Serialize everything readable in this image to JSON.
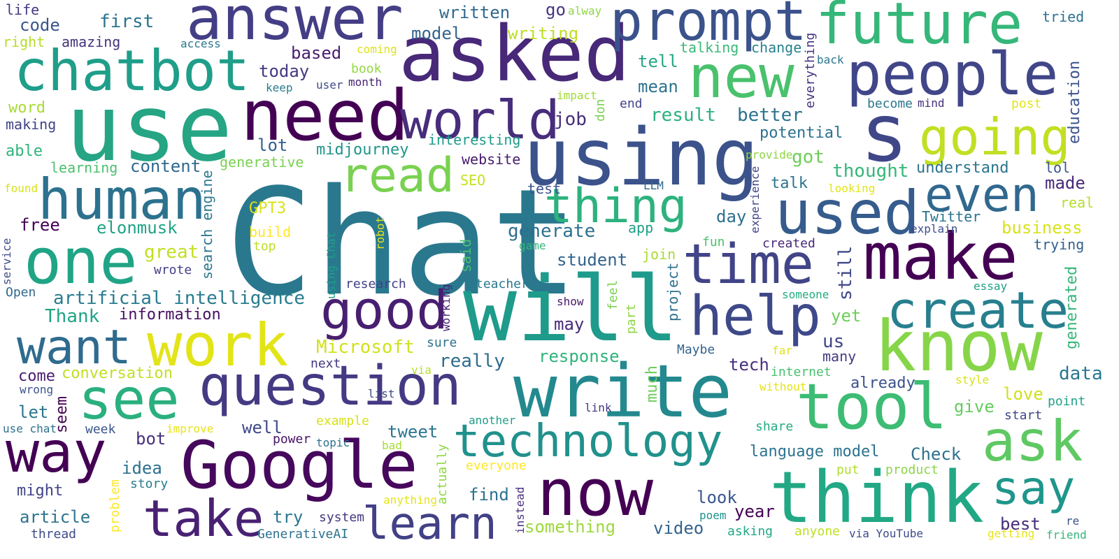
{
  "words": [
    {
      "text": "Chat",
      "color": "#2a788e"
    },
    {
      "text": "use",
      "color": "#25a584"
    },
    {
      "text": "answer",
      "color": "#433e85"
    },
    {
      "text": "asked",
      "color": "#482878"
    },
    {
      "text": "prompt",
      "color": "#3b528b"
    },
    {
      "text": "future",
      "color": "#35b779"
    },
    {
      "text": "chatbot",
      "color": "#1f9e89"
    },
    {
      "text": "need",
      "color": "#440154"
    },
    {
      "text": "using",
      "color": "#3b528b"
    },
    {
      "text": "new",
      "color": "#4ac16d"
    },
    {
      "text": "people",
      "color": "#404688"
    },
    {
      "text": "s",
      "color": "#3f4788"
    },
    {
      "text": "world",
      "color": "#472d7b"
    },
    {
      "text": "going",
      "color": "#c2df23"
    },
    {
      "text": "human",
      "color": "#2c728e"
    },
    {
      "text": "read",
      "color": "#7ad151"
    },
    {
      "text": "thing",
      "color": "#2db27d"
    },
    {
      "text": "even",
      "color": "#31688e"
    },
    {
      "text": "used",
      "color": "#365c8d"
    },
    {
      "text": "one",
      "color": "#20a486"
    },
    {
      "text": "make",
      "color": "#440154"
    },
    {
      "text": "time",
      "color": "#414487"
    },
    {
      "text": "work",
      "color": "#e2e418"
    },
    {
      "text": "will",
      "color": "#1e9b8a"
    },
    {
      "text": "good",
      "color": "#481f70"
    },
    {
      "text": "help",
      "color": "#3e4989"
    },
    {
      "text": "create",
      "color": "#277f8e"
    },
    {
      "text": "want",
      "color": "#2f6b8e"
    },
    {
      "text": "know",
      "color": "#86d549"
    },
    {
      "text": "see",
      "color": "#2ab07f"
    },
    {
      "text": "question",
      "color": "#443a83"
    },
    {
      "text": "write",
      "color": "#23898e"
    },
    {
      "text": "tool",
      "color": "#3dbc74"
    },
    {
      "text": "way",
      "color": "#440154"
    },
    {
      "text": "Google",
      "color": "#46085c"
    },
    {
      "text": "ask",
      "color": "#5ec962"
    },
    {
      "text": "technology",
      "color": "#21918c"
    },
    {
      "text": "now",
      "color": "#440154"
    },
    {
      "text": "say",
      "color": "#1f968b"
    },
    {
      "text": "think",
      "color": "#22a884"
    },
    {
      "text": "take",
      "color": "#482173"
    },
    {
      "text": "learn",
      "color": "#424086"
    },
    {
      "text": "life",
      "color": "#453781"
    },
    {
      "text": "code",
      "color": "#39568c"
    },
    {
      "text": "first",
      "color": "#2c738e"
    },
    {
      "text": "right",
      "color": "#b5de2b"
    },
    {
      "text": "amazing",
      "color": "#46337f"
    },
    {
      "text": "access",
      "color": "#2a788e"
    },
    {
      "text": "written",
      "color": "#31688e"
    },
    {
      "text": "go",
      "color": "#453581"
    },
    {
      "text": "alway",
      "color": "#8fd744"
    },
    {
      "text": "tried",
      "color": "#2d718e"
    },
    {
      "text": "model",
      "color": "#33638d"
    },
    {
      "text": "writing",
      "color": "#bddf26"
    },
    {
      "text": "based",
      "color": "#481d6f"
    },
    {
      "text": "coming",
      "color": "#dde318"
    },
    {
      "text": "talking",
      "color": "#38b977"
    },
    {
      "text": "change",
      "color": "#26818e"
    },
    {
      "text": "back",
      "color": "#2a768e"
    },
    {
      "text": "book",
      "color": "#95d840"
    },
    {
      "text": "month",
      "color": "#482677"
    },
    {
      "text": "user",
      "color": "#3e4a89"
    },
    {
      "text": "keep",
      "color": "#287c8e"
    },
    {
      "text": "today",
      "color": "#453882"
    },
    {
      "text": "impact",
      "color": "#a2da37"
    },
    {
      "text": "tell",
      "color": "#22a785"
    },
    {
      "text": "mean",
      "color": "#2c728e"
    },
    {
      "text": "end",
      "color": "#414487"
    },
    {
      "text": "everything",
      "color": "#46327e"
    },
    {
      "text": "become",
      "color": "#2a778e"
    },
    {
      "text": "mind",
      "color": "#472f7d"
    },
    {
      "text": "post",
      "color": "#e5e419"
    },
    {
      "text": "education",
      "color": "#3b528b"
    },
    {
      "text": "word",
      "color": "#a8db34"
    },
    {
      "text": "making",
      "color": "#404387"
    },
    {
      "text": "result",
      "color": "#2ab07f"
    },
    {
      "text": "better",
      "color": "#2c738e"
    },
    {
      "text": "don",
      "color": "#7ad151"
    },
    {
      "text": "job",
      "color": "#472d7b"
    },
    {
      "text": "interesting",
      "color": "#1e9b8a"
    },
    {
      "text": "potential",
      "color": "#2c728e"
    },
    {
      "text": "lot",
      "color": "#34618d"
    },
    {
      "text": "midjourney",
      "color": "#1f958b"
    },
    {
      "text": "able",
      "color": "#2eb37c"
    },
    {
      "text": "generative",
      "color": "#7ad151"
    },
    {
      "text": "content",
      "color": "#30698e"
    },
    {
      "text": "website",
      "color": "#481b6d"
    },
    {
      "text": "got",
      "color": "#6ece58"
    },
    {
      "text": "thought",
      "color": "#35b779"
    },
    {
      "text": "understand",
      "color": "#2b748e"
    },
    {
      "text": "lol",
      "color": "#39568c"
    },
    {
      "text": "provide",
      "color": "#8fd744"
    },
    {
      "text": "learning",
      "color": "#4ac16d"
    },
    {
      "text": "experience",
      "color": "#414487"
    },
    {
      "text": "looking",
      "color": "#e2e418"
    },
    {
      "text": "found",
      "color": "#d8e219"
    },
    {
      "text": "search engine",
      "color": "#2a788e"
    },
    {
      "text": "SEO",
      "color": "#c8e020"
    },
    {
      "text": "test",
      "color": "#3b528b"
    },
    {
      "text": "LLM",
      "color": "#31688e"
    },
    {
      "text": "talk",
      "color": "#2c738e"
    },
    {
      "text": "made",
      "color": "#482878"
    },
    {
      "text": "real",
      "color": "#b8de29"
    },
    {
      "text": "GPT3",
      "color": "#d8e219"
    },
    {
      "text": "build",
      "color": "#fde725"
    },
    {
      "text": "free",
      "color": "#440154"
    },
    {
      "text": "elonmusk",
      "color": "#20a386"
    },
    {
      "text": "generate",
      "color": "#2d708e"
    },
    {
      "text": "app",
      "color": "#1f9e89"
    },
    {
      "text": "day",
      "color": "#2d708e"
    },
    {
      "text": "Twitter",
      "color": "#2c728e"
    },
    {
      "text": "business",
      "color": "#d8e219"
    },
    {
      "text": "explain",
      "color": "#3d4d8a"
    },
    {
      "text": "top",
      "color": "#bddf26"
    },
    {
      "text": "robot",
      "color": "#e2e418"
    },
    {
      "text": "using Chat",
      "color": "#1fa188"
    },
    {
      "text": "great",
      "color": "#c2df23"
    },
    {
      "text": "game",
      "color": "#35b779"
    },
    {
      "text": "fun",
      "color": "#4ac16d"
    },
    {
      "text": "created",
      "color": "#482878"
    },
    {
      "text": "trying",
      "color": "#34608d"
    },
    {
      "text": "service",
      "color": "#3d4e8a"
    },
    {
      "text": "wrote",
      "color": "#424086"
    },
    {
      "text": "said",
      "color": "#48c16e"
    },
    {
      "text": "student",
      "color": "#33638d"
    },
    {
      "text": "join",
      "color": "#a8db34"
    },
    {
      "text": "still",
      "color": "#3f4788"
    },
    {
      "text": "Open",
      "color": "#31688e"
    },
    {
      "text": "research",
      "color": "#424086"
    },
    {
      "text": "teacher",
      "color": "#2a788e"
    },
    {
      "text": "project",
      "color": "#2d718e"
    },
    {
      "text": "essay",
      "color": "#1fa088"
    },
    {
      "text": "artificial intelligence",
      "color": "#287c8e"
    },
    {
      "text": "someone",
      "color": "#25ab82"
    },
    {
      "text": "show",
      "color": "#481668"
    },
    {
      "text": "feel",
      "color": "#7ad151"
    },
    {
      "text": "Thank",
      "color": "#20a486"
    },
    {
      "text": "information",
      "color": "#471063"
    },
    {
      "text": "working",
      "color": "#482173"
    },
    {
      "text": "part",
      "color": "#8fd744"
    },
    {
      "text": "yet",
      "color": "#6ece58"
    },
    {
      "text": "generated",
      "color": "#35b779"
    },
    {
      "text": "may",
      "color": "#472c7a"
    },
    {
      "text": "Microsoft",
      "color": "#d0e11c"
    },
    {
      "text": "sure",
      "color": "#2d718e"
    },
    {
      "text": "us",
      "color": "#404588"
    },
    {
      "text": "Maybe",
      "color": "#33638d"
    },
    {
      "text": "far",
      "color": "#dde318"
    },
    {
      "text": "really",
      "color": "#2f6c8e"
    },
    {
      "text": "response",
      "color": "#2eb37c"
    },
    {
      "text": "next",
      "color": "#453781"
    },
    {
      "text": "via",
      "color": "#b5de2b"
    },
    {
      "text": "tech",
      "color": "#46307e"
    },
    {
      "text": "many",
      "color": "#443a83"
    },
    {
      "text": "internet",
      "color": "#48c16e"
    },
    {
      "text": "without",
      "color": "#e2e418"
    },
    {
      "text": "come",
      "color": "#481c6e"
    },
    {
      "text": "conversation",
      "color": "#c2df23"
    },
    {
      "text": "much",
      "color": "#6ccd5a"
    },
    {
      "text": "already",
      "color": "#3b528b"
    },
    {
      "text": "data",
      "color": "#2a788e"
    },
    {
      "text": "style",
      "color": "#d8e219"
    },
    {
      "text": "wrong",
      "color": "#3b528b"
    },
    {
      "text": "list",
      "color": "#3f4889"
    },
    {
      "text": "let",
      "color": "#2a768e"
    },
    {
      "text": "seem",
      "color": "#440154"
    },
    {
      "text": "give",
      "color": "#65cb5e"
    },
    {
      "text": "love",
      "color": "#d0e11c"
    },
    {
      "text": "point",
      "color": "#20a386"
    },
    {
      "text": "link",
      "color": "#453781"
    },
    {
      "text": "well",
      "color": "#3e4989"
    },
    {
      "text": "tweet",
      "color": "#2a768e"
    },
    {
      "text": "use chat",
      "color": "#2d718e"
    },
    {
      "text": "week",
      "color": "#39568c"
    },
    {
      "text": "improve",
      "color": "#e7e419"
    },
    {
      "text": "example",
      "color": "#d8e219"
    },
    {
      "text": "another",
      "color": "#1f9e89"
    },
    {
      "text": "share",
      "color": "#25ab82"
    },
    {
      "text": "start",
      "color": "#3f4788"
    },
    {
      "text": "bot",
      "color": "#46307e"
    },
    {
      "text": "power",
      "color": "#471365"
    },
    {
      "text": "topic",
      "color": "#2c728e"
    },
    {
      "text": "language model",
      "color": "#2c738e"
    },
    {
      "text": "Check",
      "color": "#2d708e"
    },
    {
      "text": "idea",
      "color": "#2c718e"
    },
    {
      "text": "bad",
      "color": "#a8db34"
    },
    {
      "text": "everyone",
      "color": "#fde725"
    },
    {
      "text": "put",
      "color": "#b2dd2d"
    },
    {
      "text": "product",
      "color": "#8bd646"
    },
    {
      "text": "story",
      "color": "#287d8e"
    },
    {
      "text": "might",
      "color": "#414487"
    },
    {
      "text": "actually",
      "color": "#8fd744"
    },
    {
      "text": "find",
      "color": "#2d718e"
    },
    {
      "text": "look",
      "color": "#39568c"
    },
    {
      "text": "year",
      "color": "#440154"
    },
    {
      "text": "problem",
      "color": "#fde725"
    },
    {
      "text": "instead",
      "color": "#46307e"
    },
    {
      "text": "poem",
      "color": "#1f948c"
    },
    {
      "text": "best",
      "color": "#472c7a"
    },
    {
      "text": "re",
      "color": "#3b528b"
    },
    {
      "text": "article",
      "color": "#2c738e"
    },
    {
      "text": "try",
      "color": "#2a778e"
    },
    {
      "text": "anything",
      "color": "#e5e419"
    },
    {
      "text": "system",
      "color": "#453781"
    },
    {
      "text": "something",
      "color": "#9dd93b"
    },
    {
      "text": "video",
      "color": "#33638d"
    },
    {
      "text": "thread",
      "color": "#3e4a89"
    },
    {
      "text": "GenerativeAI",
      "color": "#2c728e"
    },
    {
      "text": "asking",
      "color": "#22a785"
    },
    {
      "text": "anyone",
      "color": "#bddf26"
    },
    {
      "text": "via YouTube",
      "color": "#3e4a89"
    },
    {
      "text": "getting",
      "color": "#e5e419"
    },
    {
      "text": "friend",
      "color": "#35b779"
    }
  ]
}
